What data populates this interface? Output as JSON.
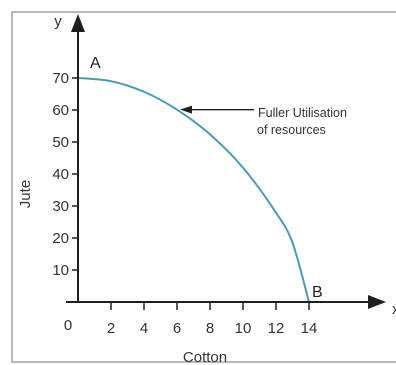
{
  "chart_data": {
    "type": "line",
    "xlabel": "Cotton",
    "ylabel": "Jute",
    "x_axis_symbol": "x",
    "y_axis_symbol": "y",
    "origin_label": "0",
    "x_ticks": [
      2,
      4,
      6,
      8,
      10,
      12,
      14
    ],
    "y_ticks": [
      10,
      20,
      30,
      40,
      50,
      60,
      70
    ],
    "xlim": [
      0,
      15.5
    ],
    "ylim": [
      0,
      79
    ],
    "grid": false,
    "series": [
      {
        "x": [
          0,
          2,
          4,
          6,
          8,
          10,
          12,
          13,
          14
        ],
        "y": [
          70,
          69,
          65.7,
          60.1,
          52.4,
          42,
          27.9,
          18.5,
          0
        ]
      }
    ],
    "points": [
      {
        "label": "A",
        "x": 0,
        "y": 70
      },
      {
        "label": "B",
        "x": 14,
        "y": 0
      }
    ],
    "annotation": {
      "lines": [
        "Fuller Utilisation",
        "of resources"
      ],
      "target": {
        "x": 6,
        "y": 60.1
      }
    },
    "colors": {
      "curve": "#4d9ab0",
      "axis": "#1f1f1f",
      "frame": "#b9b9b9"
    }
  }
}
